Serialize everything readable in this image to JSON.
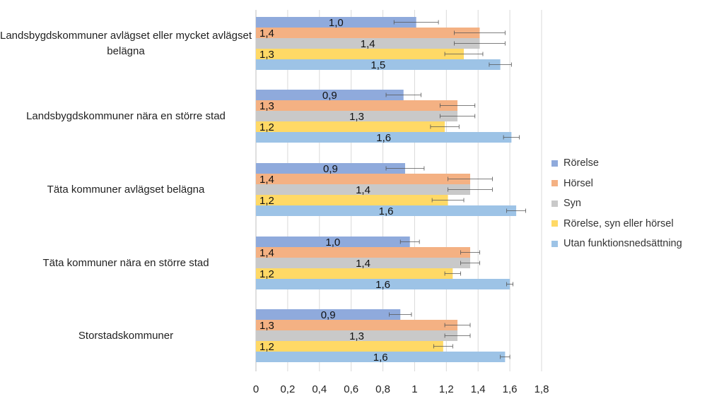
{
  "chart_data": {
    "type": "bar",
    "orientation": "horizontal",
    "title": "",
    "xlabel": "",
    "ylabel": "",
    "xlim": [
      0,
      1.8
    ],
    "grid": true,
    "legend_position": "right",
    "ticks": [
      "0",
      "0,2",
      "0,4",
      "0,6",
      "0,8",
      "1",
      "1,2",
      "1,4",
      "1,6",
      "1,8"
    ],
    "categories": [
      "Landsbygdskommuner avlägset eller mycket avlägset belägna",
      "Landsbygdskommuner nära en större stad",
      "Täta kommuner avlägset belägna",
      "Täta kommuner nära en större stad",
      "Storstadskommuner"
    ],
    "series": [
      {
        "name": "Rörelse",
        "color": "#8faadc",
        "values": [
          1.01,
          0.93,
          0.94,
          0.97,
          0.91
        ],
        "labels": [
          "1,0",
          "0,9",
          "0,9",
          "1,0",
          "0,9"
        ],
        "err": [
          0.14,
          0.11,
          0.12,
          0.06,
          0.07
        ]
      },
      {
        "name": "Hörsel",
        "color": "#f4b183",
        "values": [
          1.41,
          1.27,
          1.35,
          1.35,
          1.27
        ],
        "labels": [
          "1,4",
          "1,3",
          "1,4",
          "1,4",
          "1,3"
        ],
        "err": [
          0.16,
          0.11,
          0.14,
          0.06,
          0.08
        ]
      },
      {
        "name": "Syn",
        "color": "#c9c9c9",
        "values": [
          1.41,
          1.27,
          1.35,
          1.35,
          1.27
        ],
        "labels": [
          "1,4",
          "1,3",
          "1,4",
          "1,4",
          "1,3"
        ],
        "err": [
          0.16,
          0.11,
          0.14,
          0.06,
          0.08
        ]
      },
      {
        "name": "Rörelse, syn eller hörsel",
        "color": "#ffd966",
        "values": [
          1.31,
          1.19,
          1.21,
          1.24,
          1.18
        ],
        "labels": [
          "1,3",
          "1,2",
          "1,2",
          "1,2",
          "1,2"
        ],
        "err": [
          0.12,
          0.09,
          0.1,
          0.05,
          0.06
        ]
      },
      {
        "name": "Utan funktionsnedsättning",
        "color": "#9dc3e6",
        "values": [
          1.54,
          1.61,
          1.64,
          1.6,
          1.57
        ],
        "labels": [
          "1,5",
          "1,6",
          "1,6",
          "1,6",
          "1,6"
        ],
        "err": [
          0.07,
          0.05,
          0.06,
          0.02,
          0.03
        ]
      }
    ]
  }
}
